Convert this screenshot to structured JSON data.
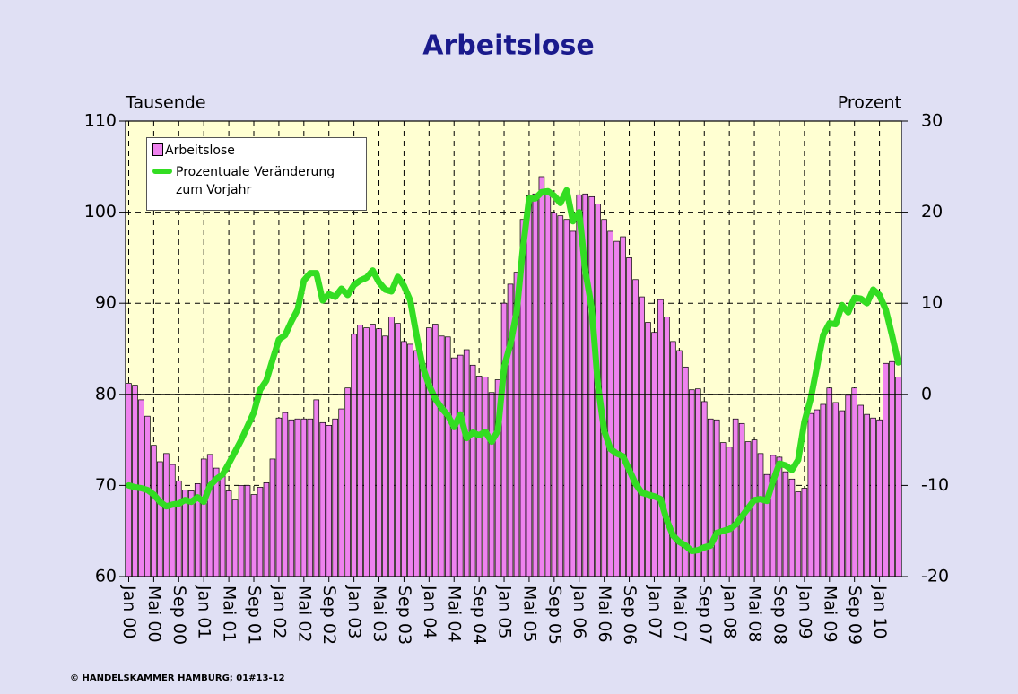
{
  "chart_data": {
    "type": "bar_line",
    "title": "Arbeitslose",
    "y_label": "Tausende",
    "y2_label": "Prozent",
    "footer": "© HANDELSKAMMER HAMBURG;  01#13-12",
    "categories": [
      "Jan 00",
      null,
      null,
      null,
      "Mai 00",
      null,
      null,
      null,
      "Sep 00",
      null,
      null,
      null,
      "Jan 01",
      null,
      null,
      null,
      "Mai 01",
      null,
      null,
      null,
      "Sep 01",
      null,
      null,
      null,
      "Jan 02",
      null,
      null,
      null,
      "Mai 02",
      null,
      null,
      null,
      "Sep 02",
      null,
      null,
      null,
      "Jan 03",
      null,
      null,
      null,
      "Mai 03",
      null,
      null,
      null,
      "Sep 03",
      null,
      null,
      null,
      "Jan 04",
      null,
      null,
      null,
      "Mai 04",
      null,
      null,
      null,
      "Sep 04",
      null,
      null,
      null,
      "Jan 05",
      null,
      null,
      null,
      "Mai 05",
      null,
      null,
      null,
      "Sep 05",
      null,
      null,
      null,
      "Jan 06",
      null,
      null,
      null,
      "Mai 06",
      null,
      null,
      null,
      "Sep 06",
      null,
      null,
      null,
      "Jan 07",
      null,
      null,
      null,
      "Mai 07",
      null,
      null,
      null,
      "Sep 07",
      null,
      null,
      null,
      "Jan 08",
      null,
      null,
      null,
      "Mai 08",
      null,
      null,
      null,
      "Sep 08",
      null,
      null,
      null,
      "Jan 09",
      null,
      null,
      null,
      "Mai 09",
      null,
      null,
      null,
      "Sep 09",
      null,
      null,
      null,
      "Jan 10",
      null,
      null,
      null
    ],
    "series": [
      {
        "name": "Arbeitslose",
        "type": "bar",
        "color": "#ee82ee",
        "values": [
          81.2,
          81.0,
          79.4,
          77.6,
          74.4,
          72.6,
          73.5,
          72.3,
          70.5,
          69.5,
          69.4,
          70.2,
          72.9,
          73.4,
          71.9,
          71.3,
          69.4,
          68.4,
          70.0,
          70.0,
          69.0,
          69.8,
          70.3,
          72.9,
          77.4,
          78.0,
          77.2,
          77.3,
          77.3,
          77.3,
          79.4,
          76.9,
          76.6,
          77.3,
          78.4,
          80.7,
          86.6,
          87.6,
          87.3,
          87.7,
          87.2,
          86.4,
          88.5,
          87.8,
          85.8,
          85.5,
          84.8,
          83.4,
          87.3,
          87.7,
          86.4,
          86.3,
          84.0,
          84.3,
          84.9,
          83.2,
          82.0,
          81.9,
          80.2,
          81.6,
          90.0,
          92.1,
          93.4,
          99.2,
          101.8,
          102.0,
          103.9,
          102.4,
          99.9,
          99.6,
          99.2,
          97.9,
          101.9,
          102.0,
          101.7,
          100.9,
          99.2,
          97.9,
          96.8,
          97.3,
          95.0,
          92.6,
          90.7,
          87.9,
          86.8,
          90.4,
          88.5,
          85.8,
          84.8,
          83.0,
          80.5,
          80.6,
          79.2,
          77.3,
          77.2,
          74.7,
          74.2,
          77.3,
          76.8,
          74.8,
          75.0,
          73.5,
          71.2,
          73.3,
          73.1,
          71.5,
          70.7,
          69.3,
          69.7,
          77.9,
          78.3,
          78.9,
          80.7,
          79.1,
          78.2,
          79.9,
          80.7,
          78.8,
          77.8,
          77.4,
          77.2,
          83.4,
          83.6,
          81.9
        ]
      },
      {
        "name": "Prozentuale Veränderung zum Vorjahr",
        "type": "line",
        "axis": "y2",
        "color": "#33dd22",
        "values": [
          -10,
          -10.2,
          -10.3,
          -10.5,
          -11,
          -11.8,
          -12.3,
          -12.1,
          -12,
          -11.6,
          -11.8,
          -11.3,
          -11.8,
          -10,
          -9.3,
          -8.8,
          -7.6,
          -6.3,
          -5,
          -3.5,
          -2,
          0.5,
          1.5,
          3.8,
          6,
          6.5,
          8,
          9.3,
          12.5,
          13.3,
          13.3,
          10.3,
          11,
          10.7,
          11.6,
          10.9,
          12,
          12.5,
          12.8,
          13.6,
          12.3,
          11.5,
          11.3,
          12.9,
          11.9,
          10.3,
          6.5,
          3,
          1,
          -0.5,
          -1.5,
          -2.3,
          -3.6,
          -2.2,
          -4.8,
          -4.2,
          -4.5,
          -4.1,
          -5.2,
          -4,
          3,
          5.5,
          9,
          16,
          21.5,
          21.5,
          22.2,
          22.3,
          21.8,
          21,
          22.4,
          19,
          20,
          13.5,
          9.5,
          1,
          -4,
          -6,
          -6.5,
          -6.8,
          -8.3,
          -9.8,
          -10.8,
          -11,
          -11.2,
          -11.5,
          -13.8,
          -15.5,
          -16.2,
          -16.6,
          -17.2,
          -17.1,
          -16.8,
          -16.6,
          -15.2,
          -15,
          -14.8,
          -14.3,
          -13.4,
          -12.5,
          -11.6,
          -11.5,
          -11.7,
          -9.5,
          -7.6,
          -7.8,
          -8.3,
          -7.2,
          -3,
          -0.5,
          3,
          6.5,
          7.8,
          7.7,
          9.8,
          9,
          10.6,
          10.5,
          10,
          11.5,
          10.9,
          9.3,
          6.5,
          3.5
        ]
      }
    ],
    "ylim": [
      60,
      110
    ],
    "yticks": [
      60,
      70,
      80,
      90,
      100,
      110
    ],
    "y2lim": [
      -20,
      30
    ],
    "y2ticks": [
      -20,
      -10,
      0,
      10,
      20,
      30
    ],
    "grid": true
  }
}
